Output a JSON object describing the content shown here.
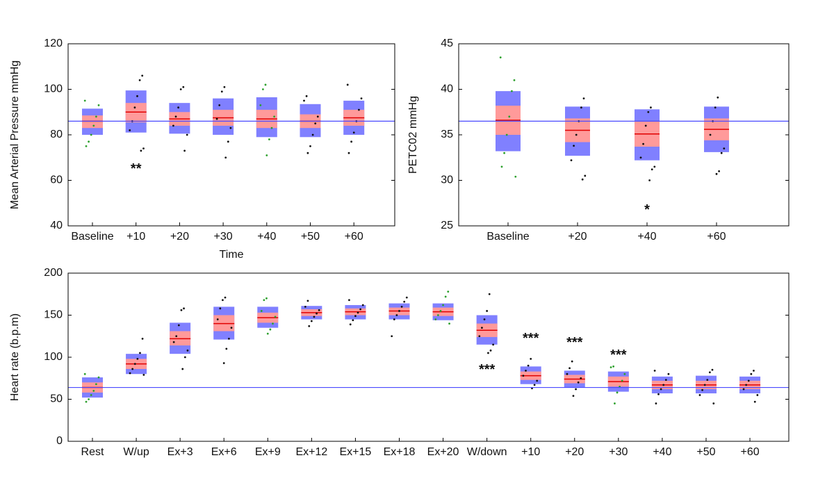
{
  "chart_data": [
    {
      "type": "box",
      "ylabel": "Mean Arterial Pressure mmHg",
      "xlabel": "Time",
      "categories": [
        "Baseline",
        "+10",
        "+20",
        "+30",
        "+40",
        "+50",
        "+60"
      ],
      "ylim": [
        40,
        120
      ],
      "yticks": [
        40,
        60,
        80,
        100,
        120
      ],
      "reference": 86,
      "sd_color": "#8080ff",
      "ci_color": "#ff9a9a",
      "mean_color": "#e00000",
      "reference_color": "#4a4aff",
      "sd": [
        [
          80,
          91.5
        ],
        [
          81,
          99.5
        ],
        [
          80.5,
          94
        ],
        [
          80,
          96
        ],
        [
          79,
          96.5
        ],
        [
          79,
          93.5
        ],
        [
          80,
          95
        ]
      ],
      "ci": [
        [
          83,
          88.5
        ],
        [
          85.5,
          94
        ],
        [
          84,
          90
        ],
        [
          84,
          91
        ],
        [
          83,
          91
        ],
        [
          83,
          89
        ],
        [
          84,
          91
        ]
      ],
      "mean": [
        86,
        90,
        87,
        87.5,
        87,
        86,
        87.5
      ],
      "point_colors": [
        "#2ca02c",
        "#111111",
        "#111111",
        "#111111",
        "#2ca02c",
        "#111111",
        "#111111"
      ],
      "points": [
        [
          95,
          93,
          88,
          84,
          80,
          77,
          75
        ],
        [
          106,
          104,
          97,
          92,
          86,
          82,
          74,
          73
        ],
        [
          101,
          100,
          92,
          88,
          84,
          80,
          73
        ],
        [
          101,
          99,
          93,
          87,
          83,
          77,
          70
        ],
        [
          102,
          100,
          93,
          88,
          83,
          78,
          71
        ],
        [
          97,
          95,
          88,
          85,
          80,
          75,
          72
        ],
        [
          102,
          96,
          91,
          86,
          81,
          77,
          72
        ]
      ],
      "annotations": [
        {
          "text": "**",
          "x": "+10",
          "y": 66
        }
      ]
    },
    {
      "type": "box",
      "ylabel": "PETC02 mmHg",
      "categories": [
        "Baseline",
        "+20",
        "+40",
        "+60"
      ],
      "ylim": [
        25,
        45
      ],
      "yticks": [
        25,
        30,
        35,
        40,
        45
      ],
      "reference": 36.5,
      "sd_color": "#8080ff",
      "ci_color": "#ff9a9a",
      "mean_color": "#e00000",
      "reference_color": "#4a4aff",
      "sd": [
        [
          33.2,
          39.8
        ],
        [
          32.7,
          38.1
        ],
        [
          32.2,
          37.8
        ],
        [
          33.1,
          38.1
        ]
      ],
      "ci": [
        [
          35,
          38.2
        ],
        [
          34.2,
          36.8
        ],
        [
          33.7,
          36.5
        ],
        [
          34.4,
          36.8
        ]
      ],
      "mean": [
        36.6,
        35.5,
        35.1,
        35.6
      ],
      "point_colors": [
        "#2ca02c",
        "#111111",
        "#111111",
        "#111111"
      ],
      "points": [
        [
          43.5,
          41,
          39.8,
          37,
          35,
          33,
          31.5,
          30.4
        ],
        [
          39,
          38,
          36.5,
          35,
          33.8,
          32.2,
          30.5,
          30.1
        ],
        [
          38,
          37.5,
          36,
          34,
          32.5,
          31.5,
          31.2,
          30
        ],
        [
          39.1,
          38,
          36.5,
          35,
          33.5,
          33,
          31,
          30.7
        ]
      ],
      "annotations": [
        {
          "text": "*",
          "x": "+40",
          "y": 27
        }
      ]
    },
    {
      "type": "box",
      "ylabel": "Heart rate (b.p.m)",
      "categories": [
        "Rest",
        "W/up",
        "Ex+3",
        "Ex+6",
        "Ex+9",
        "Ex+12",
        "Ex+15",
        "Ex+18",
        "Ex+20",
        "W/down",
        "+10",
        "+20",
        "+30",
        "+40",
        "+50",
        "+60"
      ],
      "ylim": [
        0,
        200
      ],
      "yticks": [
        0,
        50,
        100,
        150,
        200
      ],
      "reference": 64,
      "sd_color": "#8080ff",
      "ci_color": "#ff9a9a",
      "mean_color": "#e00000",
      "reference_color": "#4a4aff",
      "sd": [
        [
          52,
          76
        ],
        [
          80,
          104
        ],
        [
          104,
          141
        ],
        [
          121,
          160
        ],
        [
          135,
          160
        ],
        [
          145,
          161
        ],
        [
          145,
          162
        ],
        [
          145,
          164
        ],
        [
          144,
          164
        ],
        [
          115,
          150
        ],
        [
          68,
          89
        ],
        [
          64,
          84
        ],
        [
          59,
          83
        ],
        [
          57,
          77
        ],
        [
          57,
          78
        ],
        [
          57,
          77
        ]
      ],
      "ci": [
        [
          58,
          70
        ],
        [
          86,
          98
        ],
        [
          114,
          131
        ],
        [
          131,
          150
        ],
        [
          141,
          153
        ],
        [
          149,
          157
        ],
        [
          150,
          158
        ],
        [
          150,
          159
        ],
        [
          149,
          159
        ],
        [
          124,
          140
        ],
        [
          73,
          83
        ],
        [
          69,
          79
        ],
        [
          65,
          77
        ],
        [
          62,
          72
        ],
        [
          62,
          72
        ],
        [
          62,
          72
        ]
      ],
      "mean": [
        64,
        92,
        122,
        140,
        147,
        153,
        154,
        155,
        154,
        132,
        78,
        74,
        71,
        67,
        67,
        67
      ],
      "point_colors": [
        "#2ca02c",
        "#111111",
        "#111111",
        "#111111",
        "#2ca02c",
        "#111111",
        "#111111",
        "#111111",
        "#2ca02c",
        "#111111",
        "#111111",
        "#111111",
        "#2ca02c",
        "#111111",
        "#111111",
        "#111111"
      ],
      "points": [
        [
          80,
          76,
          68,
          60,
          55,
          50,
          47
        ],
        [
          122,
          105,
          98,
          92,
          86,
          81,
          79
        ],
        [
          158,
          156,
          138,
          125,
          118,
          108,
          100,
          86
        ],
        [
          171,
          168,
          158,
          145,
          135,
          122,
          110,
          93
        ],
        [
          170,
          168,
          155,
          148,
          140,
          133,
          128
        ],
        [
          167,
          160,
          156,
          152,
          148,
          143,
          137
        ],
        [
          168,
          162,
          157,
          153,
          149,
          144,
          139
        ],
        [
          171,
          166,
          160,
          155,
          150,
          145,
          125
        ],
        [
          178,
          172,
          162,
          155,
          150,
          145,
          140
        ],
        [
          175,
          155,
          145,
          135,
          125,
          115,
          108,
          105
        ],
        [
          98,
          90,
          84,
          78,
          72,
          67,
          63
        ],
        [
          95,
          87,
          80,
          75,
          70,
          62,
          54
        ],
        [
          89,
          88,
          80,
          72,
          65,
          58,
          45
        ],
        [
          84,
          80,
          73,
          67,
          62,
          56,
          45
        ],
        [
          85,
          82,
          73,
          67,
          61,
          55,
          45
        ],
        [
          84,
          80,
          72,
          67,
          62,
          55,
          47
        ]
      ],
      "annotations": [
        {
          "text": "***",
          "x": "W/down",
          "y": 88
        },
        {
          "text": "***",
          "x": "+10",
          "y": 125
        },
        {
          "text": "***",
          "x": "+20",
          "y": 120
        },
        {
          "text": "***",
          "x": "+30",
          "y": 105
        }
      ]
    }
  ]
}
